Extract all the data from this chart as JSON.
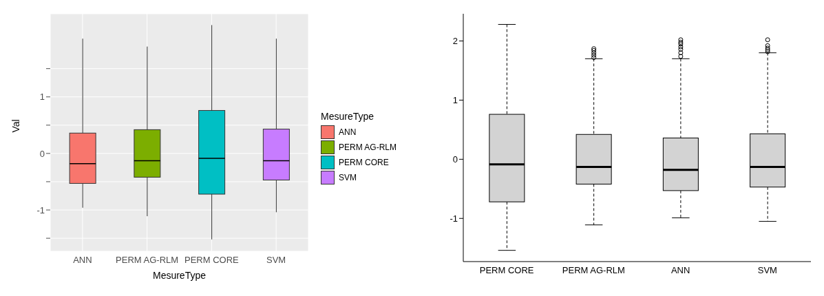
{
  "chart_data": [
    {
      "type": "box",
      "xlabel": "MesureType",
      "ylabel": "Val",
      "legend_title": "MesureType",
      "categories": [
        "ANN",
        "PERM AG-RLM",
        "PERM CORE",
        "SVM"
      ],
      "ylim": [
        -1.73,
        2.47
      ],
      "yticks": [
        {
          "value": -1.5,
          "label": null
        },
        -1,
        {
          "value": -0.5,
          "label": null
        },
        0,
        {
          "value": 0.5,
          "label": null
        },
        1,
        {
          "value": 1.5,
          "label": null
        }
      ],
      "grid": true,
      "legend": "right",
      "series": [
        {
          "name": "ANN",
          "color": "#f8766d",
          "boxes": [
            {
              "low": -0.96,
              "q1": -0.53,
              "median": -0.18,
              "q3": 0.36,
              "high": 2.03
            },
            null,
            null,
            null
          ]
        },
        {
          "name": "PERM AG-RLM",
          "color": "#7cae00",
          "boxes": [
            null,
            {
              "low": -1.11,
              "q1": -0.42,
              "median": -0.13,
              "q3": 0.42,
              "high": 1.89
            },
            null,
            null
          ]
        },
        {
          "name": "PERM CORE",
          "color": "#00bfc4",
          "boxes": [
            null,
            null,
            {
              "low": -1.52,
              "q1": -0.72,
              "median": -0.085,
              "q3": 0.76,
              "high": 2.27
            },
            null
          ]
        },
        {
          "name": "SVM",
          "color": "#c77cff",
          "boxes": [
            null,
            null,
            null,
            {
              "low": -1.04,
              "q1": -0.47,
              "median": -0.13,
              "q3": 0.43,
              "high": 2.03
            }
          ]
        }
      ]
    },
    {
      "type": "box",
      "categories": [
        "PERM CORE",
        "PERM AG-RLM",
        "ANN",
        "SVM"
      ],
      "ylim": [
        -1.73,
        2.46
      ],
      "yticks": [
        -1,
        0,
        1,
        2
      ],
      "grid": false,
      "legend": false,
      "line_style": "dashed",
      "color": "#d3d3d3",
      "boxes": [
        {
          "low": -1.54,
          "q1": -0.72,
          "median": -0.085,
          "q3": 0.76,
          "high": 2.28
        },
        {
          "low": -1.11,
          "q1": -0.42,
          "median": -0.13,
          "q3": 0.42,
          "high": 1.7,
          "outliers": [
            1.72,
            1.76,
            1.8,
            1.84,
            1.87
          ]
        },
        {
          "low": -0.99,
          "q1": -0.53,
          "median": -0.18,
          "q3": 0.36,
          "high": 1.7,
          "outliers": [
            1.74,
            1.8,
            1.86,
            1.9,
            1.95,
            1.98,
            2.02
          ]
        },
        {
          "low": -1.05,
          "q1": -0.47,
          "median": -0.13,
          "q3": 0.43,
          "high": 1.8,
          "outliers": [
            1.82,
            1.85,
            1.88,
            1.92,
            2.02
          ]
        }
      ]
    }
  ]
}
